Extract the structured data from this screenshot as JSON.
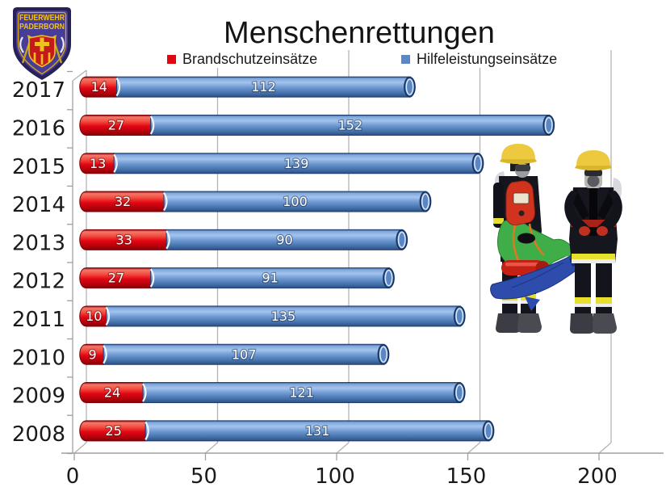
{
  "logo": {
    "line1": "FEUERWEHR",
    "line2": "PADERBORN"
  },
  "title": "Menschenrettungen",
  "legend": [
    {
      "label": "Brandschutzeinsätze",
      "color": "#e00713"
    },
    {
      "label": "Hilfeleistungseinsätze",
      "color": "#5b87c5"
    }
  ],
  "chart_data": {
    "type": "bar",
    "orientation": "horizontal",
    "stacked": true,
    "effect": "3d-cylinder",
    "title": "Menschenrettungen",
    "categories": [
      "2017",
      "2016",
      "2015",
      "2014",
      "2013",
      "2012",
      "2011",
      "2010",
      "2009",
      "2008"
    ],
    "series": [
      {
        "name": "Brandschutzeinsätze",
        "color": "#e00713",
        "values": [
          14,
          27,
          13,
          32,
          33,
          27,
          10,
          9,
          24,
          25
        ]
      },
      {
        "name": "Hilfeleistungseinsätze",
        "color": "#5b87c5",
        "values": [
          112,
          152,
          139,
          100,
          90,
          91,
          135,
          107,
          121,
          131
        ]
      }
    ],
    "x_ticks": [
      0,
      50,
      100,
      150,
      200
    ],
    "xlim": [
      0,
      224
    ],
    "grid": true,
    "legend_position": "top",
    "grid_color": "#b3b3b3",
    "axis_color": "#a0a0a0",
    "label_color": "#ffffff"
  },
  "illustration": "two-firefighters-carrying-person-on-stretcher"
}
